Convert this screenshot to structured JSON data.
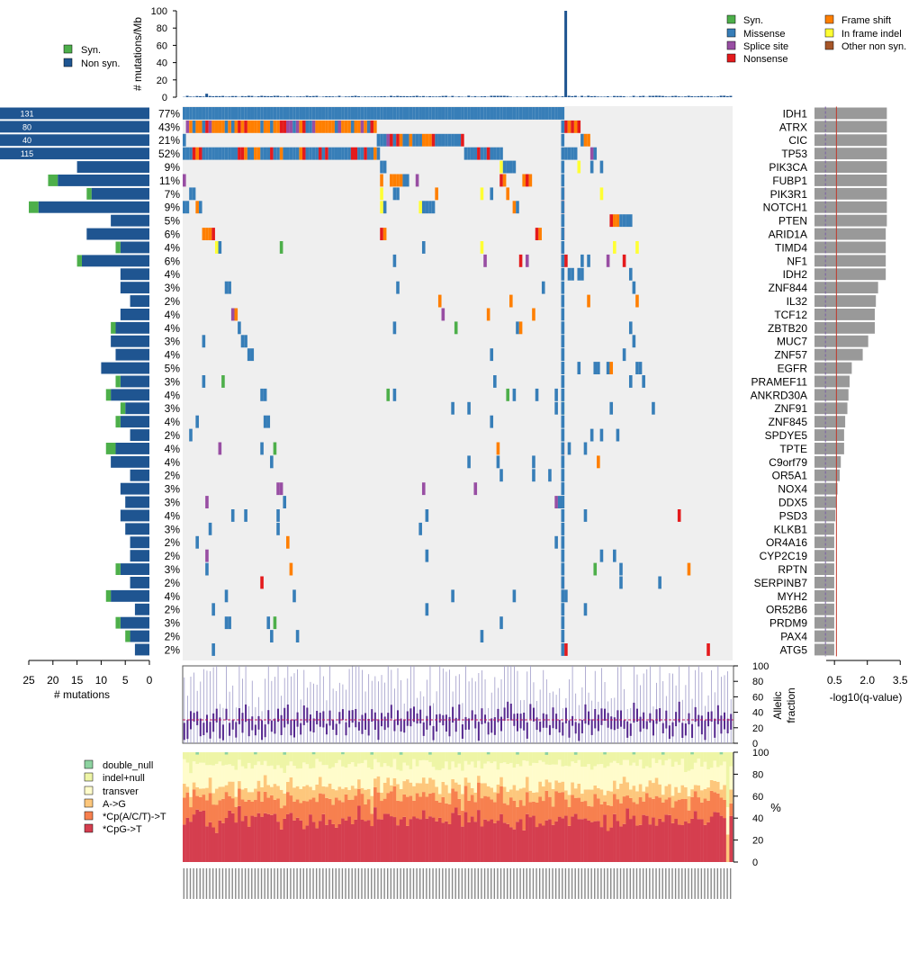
{
  "chart_data": {
    "type": "heatmap",
    "title": "",
    "legend_top_left": {
      "syn": "Syn.",
      "nonsyn": "Non syn."
    },
    "legend_top_right": [
      {
        "label": "Syn.",
        "color": "#4daf4a"
      },
      {
        "label": "Missense",
        "color": "#377eb8"
      },
      {
        "label": "Splice site",
        "color": "#984ea3"
      },
      {
        "label": "Nonsense",
        "color": "#e41a1c"
      },
      {
        "label": "Frame shift",
        "color": "#ff7f00"
      },
      {
        "label": "In frame indel",
        "color": "#ffff33"
      },
      {
        "label": "Other non syn.",
        "color": "#a65628"
      }
    ],
    "top_panel": {
      "ylabel": "# mutations/Mb",
      "ylim": [
        0,
        100
      ],
      "ticks": [
        "0",
        "20",
        "40",
        "60",
        "80",
        "100"
      ],
      "n_samples": 170,
      "outlier_sample_index": 118,
      "outlier_value": 100
    },
    "genes": [
      {
        "name": "IDH1",
        "count": 131,
        "pct": "77%",
        "syn": 0,
        "nonsyn": 131,
        "q": 3.3
      },
      {
        "name": "ATRX",
        "count": 80,
        "pct": "43%",
        "syn": 0,
        "nonsyn": 80,
        "q": 3.3
      },
      {
        "name": "CIC",
        "count": 40,
        "pct": "21%",
        "syn": 0,
        "nonsyn": 40,
        "q": 3.3
      },
      {
        "name": "TP53",
        "count": 115,
        "pct": "52%",
        "syn": 0,
        "nonsyn": 115,
        "q": 3.3
      },
      {
        "name": "PIK3CA",
        "count": 15,
        "pct": "9%",
        "syn": 0,
        "nonsyn": 15,
        "q": 3.3
      },
      {
        "name": "FUBP1",
        "count": 21,
        "pct": "11%",
        "syn": 2,
        "nonsyn": 19,
        "q": 3.3
      },
      {
        "name": "PIK3R1",
        "count": 13,
        "pct": "7%",
        "syn": 1,
        "nonsyn": 12,
        "q": 3.3
      },
      {
        "name": "NOTCH1",
        "count": 25,
        "pct": "9%",
        "syn": 2,
        "nonsyn": 23,
        "q": 3.3
      },
      {
        "name": "PTEN",
        "count": 8,
        "pct": "5%",
        "syn": 0,
        "nonsyn": 8,
        "q": 3.3
      },
      {
        "name": "ARID1A",
        "count": 13,
        "pct": "6%",
        "syn": 0,
        "nonsyn": 13,
        "q": 3.25
      },
      {
        "name": "TIMD4",
        "count": 7,
        "pct": "4%",
        "syn": 1,
        "nonsyn": 6,
        "q": 3.25
      },
      {
        "name": "NF1",
        "count": 15,
        "pct": "6%",
        "syn": 1,
        "nonsyn": 14,
        "q": 3.25
      },
      {
        "name": "IDH2",
        "count": 6,
        "pct": "4%",
        "syn": 0,
        "nonsyn": 6,
        "q": 3.25
      },
      {
        "name": "ZNF844",
        "count": 6,
        "pct": "3%",
        "syn": 0,
        "nonsyn": 6,
        "q": 2.9
      },
      {
        "name": "IL32",
        "count": 4,
        "pct": "2%",
        "syn": 0,
        "nonsyn": 4,
        "q": 2.8
      },
      {
        "name": "TCF12",
        "count": 6,
        "pct": "4%",
        "syn": 0,
        "nonsyn": 6,
        "q": 2.75
      },
      {
        "name": "ZBTB20",
        "count": 8,
        "pct": "4%",
        "syn": 1,
        "nonsyn": 7,
        "q": 2.75
      },
      {
        "name": "MUC7",
        "count": 8,
        "pct": "3%",
        "syn": 0,
        "nonsyn": 8,
        "q": 2.45
      },
      {
        "name": "ZNF57",
        "count": 7,
        "pct": "4%",
        "syn": 0,
        "nonsyn": 7,
        "q": 2.2
      },
      {
        "name": "EGFR",
        "count": 10,
        "pct": "5%",
        "syn": 0,
        "nonsyn": 10,
        "q": 1.7
      },
      {
        "name": "PRAMEF11",
        "count": 7,
        "pct": "3%",
        "syn": 1,
        "nonsyn": 6,
        "q": 1.6
      },
      {
        "name": "ANKRD30A",
        "count": 9,
        "pct": "4%",
        "syn": 1,
        "nonsyn": 8,
        "q": 1.55
      },
      {
        "name": "ZNF91",
        "count": 6,
        "pct": "3%",
        "syn": 1,
        "nonsyn": 5,
        "q": 1.5
      },
      {
        "name": "ZNF845",
        "count": 7,
        "pct": "4%",
        "syn": 1,
        "nonsyn": 6,
        "q": 1.4
      },
      {
        "name": "SPDYE5",
        "count": 4,
        "pct": "2%",
        "syn": 0,
        "nonsyn": 4,
        "q": 1.35
      },
      {
        "name": "TPTE",
        "count": 9,
        "pct": "4%",
        "syn": 2,
        "nonsyn": 7,
        "q": 1.35
      },
      {
        "name": "C9orf79",
        "count": 8,
        "pct": "4%",
        "syn": 0,
        "nonsyn": 8,
        "q": 1.2
      },
      {
        "name": "OR5A1",
        "count": 4,
        "pct": "2%",
        "syn": 0,
        "nonsyn": 4,
        "q": 1.15
      },
      {
        "name": "NOX4",
        "count": 6,
        "pct": "3%",
        "syn": 0,
        "nonsyn": 6,
        "q": 1.05
      },
      {
        "name": "DDX5",
        "count": 5,
        "pct": "3%",
        "syn": 0,
        "nonsyn": 5,
        "q": 1.0
      },
      {
        "name": "PSD3",
        "count": 6,
        "pct": "4%",
        "syn": 0,
        "nonsyn": 6,
        "q": 0.95
      },
      {
        "name": "KLKB1",
        "count": 5,
        "pct": "3%",
        "syn": 0,
        "nonsyn": 5,
        "q": 0.9
      },
      {
        "name": "OR4A16",
        "count": 4,
        "pct": "2%",
        "syn": 0,
        "nonsyn": 4,
        "q": 0.9
      },
      {
        "name": "CYP2C19",
        "count": 4,
        "pct": "2%",
        "syn": 0,
        "nonsyn": 4,
        "q": 0.9
      },
      {
        "name": "RPTN",
        "count": 7,
        "pct": "3%",
        "syn": 1,
        "nonsyn": 6,
        "q": 0.9
      },
      {
        "name": "SERPINB7",
        "count": 4,
        "pct": "2%",
        "syn": 0,
        "nonsyn": 4,
        "q": 0.9
      },
      {
        "name": "MYH2",
        "count": 9,
        "pct": "4%",
        "syn": 1,
        "nonsyn": 8,
        "q": 0.9
      },
      {
        "name": "OR52B6",
        "count": 3,
        "pct": "2%",
        "syn": 0,
        "nonsyn": 3,
        "q": 0.9
      },
      {
        "name": "PRDM9",
        "count": 7,
        "pct": "3%",
        "syn": 1,
        "nonsyn": 6,
        "q": 0.9
      },
      {
        "name": "PAX4",
        "count": 5,
        "pct": "2%",
        "syn": 1,
        "nonsyn": 4,
        "q": 0.9
      },
      {
        "name": "ATG5",
        "count": 3,
        "pct": "2%",
        "syn": 0,
        "nonsyn": 3,
        "q": 0.9
      }
    ],
    "left_axis": {
      "label": "# mutations",
      "ticks": [
        "25",
        "20",
        "15",
        "10",
        "5",
        "0"
      ],
      "max": 25
    },
    "right_axis": {
      "label": "-log10(q-value)",
      "ticks": [
        "0.5",
        "2.0",
        "3.5"
      ],
      "max": 3.9,
      "thresholds": [
        0.5,
        1.0
      ]
    },
    "allelic_panel": {
      "ylabel": [
        "Allelic",
        "fraction"
      ],
      "ticks": [
        "0",
        "20",
        "40",
        "60",
        "80",
        "100"
      ],
      "median_line": 30
    },
    "spectrum_panel": {
      "ylabel": "%",
      "ticks": [
        "0",
        "20",
        "40",
        "60",
        "80",
        "100"
      ],
      "categories": [
        {
          "label": "double_null",
          "color": "#8dd3a0"
        },
        {
          "label": "indel+null",
          "color": "#eef5a6"
        },
        {
          "label": "transver",
          "color": "#fffccb"
        },
        {
          "label": "A->G",
          "color": "#fdc77c"
        },
        {
          "label": "*Cp(A/C/T)->T",
          "color": "#f7804f"
        },
        {
          "label": "*CpG->T",
          "color": "#d53e4f"
        }
      ]
    }
  }
}
